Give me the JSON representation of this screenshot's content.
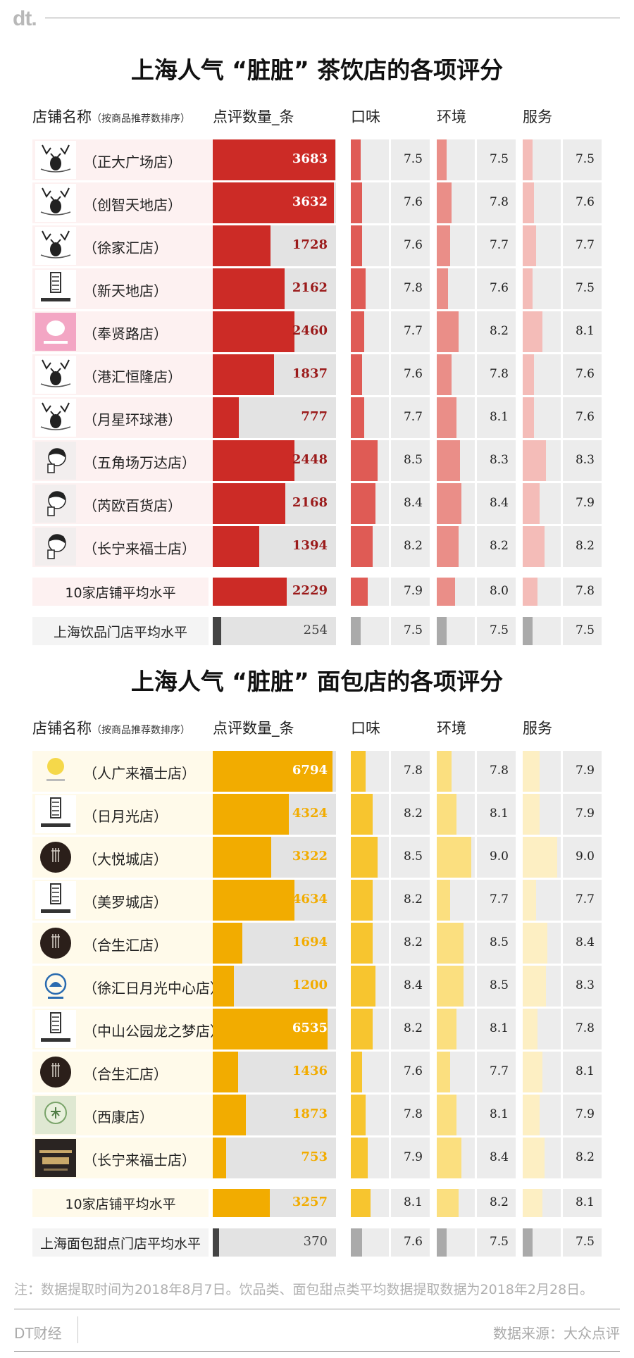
{
  "header": {
    "logo": "dt."
  },
  "columns": {
    "store": "店铺名称",
    "store_note": "（按商品推荐数排序）",
    "count": "点评数量_条",
    "taste": "口味",
    "env": "环境",
    "service": "服务"
  },
  "chart_data": [
    {
      "type": "bar",
      "title": "上海人气 “脏脏” 茶饮店的各项评分",
      "columns": [
        "点评数量_条",
        "口味",
        "环境",
        "服务"
      ],
      "colors": {
        "count": "#cc2b26",
        "count_text": "#9b1b1b",
        "taste": "#df5b55",
        "env": "#ea8e88",
        "service": "#f4bcb8",
        "store_bg": "#fdf1f1"
      },
      "rows": [
        {
          "name": "（正大广场店）",
          "logo": "deer-logo",
          "count": 3683,
          "taste": 7.5,
          "env": 7.5,
          "service": 7.5
        },
        {
          "name": "（创智天地店）",
          "logo": "deer-logo",
          "count": 3632,
          "taste": 7.6,
          "env": 7.8,
          "service": 7.6
        },
        {
          "name": "（徐家汇店）",
          "logo": "deer-logo",
          "count": 1728,
          "taste": 7.6,
          "env": 7.7,
          "service": 7.7
        },
        {
          "name": "（新天地店）",
          "logo": "lelecha-logo",
          "count": 2162,
          "taste": 7.8,
          "env": 7.6,
          "service": 7.5
        },
        {
          "name": "（奉贤路店）",
          "logo": "pink-pig-logo",
          "count": 2460,
          "taste": 7.7,
          "env": 8.2,
          "service": 8.1
        },
        {
          "name": "（港汇恒隆店）",
          "logo": "deer-logo",
          "count": 1837,
          "taste": 7.6,
          "env": 7.8,
          "service": 7.6
        },
        {
          "name": "（月星环球港）",
          "logo": "deer-logo",
          "count": 777,
          "taste": 7.7,
          "env": 8.1,
          "service": 7.6
        },
        {
          "name": "（五角场万达店）",
          "logo": "boy-drinking-logo",
          "count": 2448,
          "taste": 8.5,
          "env": 8.3,
          "service": 8.3
        },
        {
          "name": "（芮欧百货店）",
          "logo": "boy-drinking-logo",
          "count": 2168,
          "taste": 8.4,
          "env": 8.4,
          "service": 7.9
        },
        {
          "name": "（长宁来福士店）",
          "logo": "boy-drinking-logo",
          "count": 1394,
          "taste": 8.2,
          "env": 8.2,
          "service": 8.2
        }
      ],
      "average": {
        "label": "10家店铺平均水平",
        "count": 2229,
        "taste": 7.9,
        "env": 8.0,
        "service": 7.8
      },
      "city": {
        "label": "上海饮品门店平均水平",
        "count": 254,
        "taste": 7.5,
        "env": 7.5,
        "service": 7.5
      }
    },
    {
      "type": "bar",
      "title": "上海人气 “脏脏” 面包店的各项评分",
      "columns": [
        "点评数量_条",
        "口味",
        "环境",
        "服务"
      ],
      "colors": {
        "count": "#f2ac00",
        "count_text": "#f2ac00",
        "taste": "#f7c52f",
        "env": "#fbdf7f",
        "service": "#fdefc3",
        "store_bg": "#fffaea"
      },
      "rows": [
        {
          "name": "（人广来福士店）",
          "logo": "yellow-circle-logo",
          "count": 6794,
          "taste": 7.8,
          "env": 7.8,
          "service": 7.9
        },
        {
          "name": "（日月光店）",
          "logo": "lelecha-logo",
          "count": 4324,
          "taste": 8.2,
          "env": 8.1,
          "service": 7.9
        },
        {
          "name": "（大悦城店）",
          "logo": "dark-circle-logo",
          "count": 3322,
          "taste": 8.5,
          "env": 9.0,
          "service": 9.0
        },
        {
          "name": "（美罗城店）",
          "logo": "lelecha-logo",
          "count": 4634,
          "taste": 8.2,
          "env": 7.7,
          "service": 7.7
        },
        {
          "name": "（合生汇店）",
          "logo": "dark-circle-logo",
          "count": 1694,
          "taste": 8.2,
          "env": 8.5,
          "service": 8.4
        },
        {
          "name": "（徐汇日月光中心店）",
          "logo": "blue-hat-logo",
          "count": 1200,
          "taste": 8.4,
          "env": 8.5,
          "service": 8.3
        },
        {
          "name": "（中山公园龙之梦店）",
          "logo": "lelecha-logo",
          "count": 6535,
          "taste": 8.2,
          "env": 8.1,
          "service": 7.8
        },
        {
          "name": "（合生汇店）",
          "logo": "dark-circle-logo",
          "count": 1436,
          "taste": 7.6,
          "env": 7.7,
          "service": 8.1
        },
        {
          "name": "（西康店）",
          "logo": "green-circle-logo",
          "count": 1873,
          "taste": 7.8,
          "env": 8.1,
          "service": 7.9
        },
        {
          "name": "（长宁来福士店）",
          "logo": "honeybast-logo",
          "count": 753,
          "taste": 7.9,
          "env": 8.4,
          "service": 8.2
        }
      ],
      "average": {
        "label": "10家店铺平均水平",
        "count": 3257,
        "taste": 8.1,
        "env": 8.2,
        "service": 8.1
      },
      "city": {
        "label": "上海面包甜点门店平均水平",
        "count": 370,
        "taste": 7.6,
        "env": 7.5,
        "service": 7.5
      }
    }
  ],
  "footer": {
    "note": "注：数据提取时间为2018年8月7日。饮品类、面包甜点类平均数据提取数据为2018年2月28日。",
    "brand": "DT财经",
    "source": "数据来源：大众点评"
  }
}
